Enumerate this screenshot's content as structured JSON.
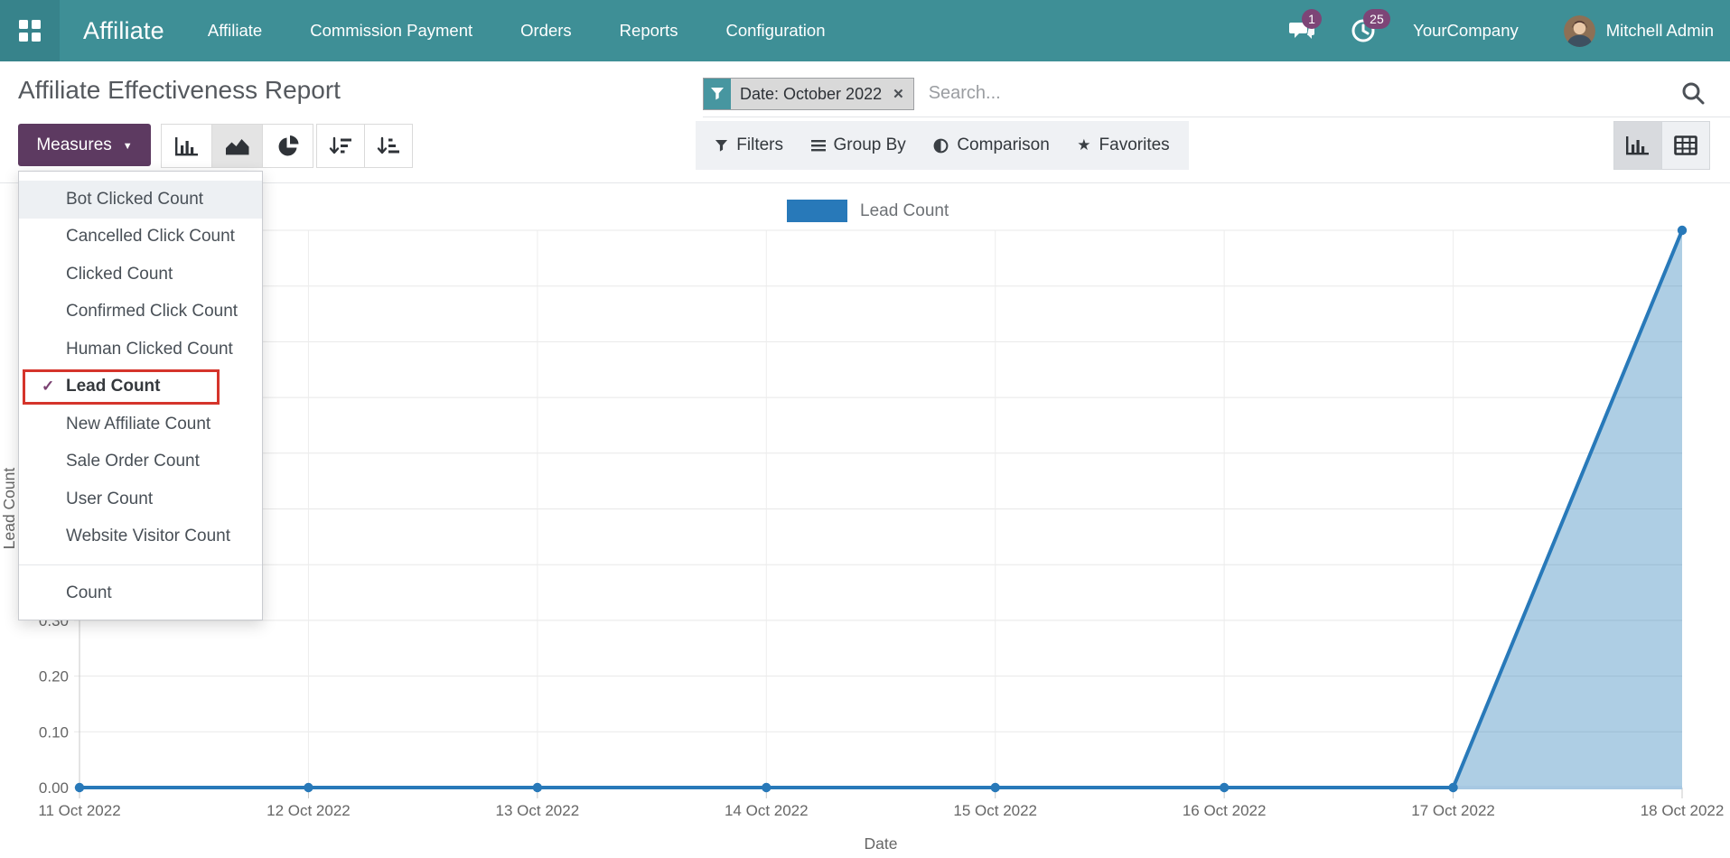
{
  "navbar": {
    "brand": "Affiliate",
    "menu_items": [
      "Affiliate",
      "Commission Payment",
      "Orders",
      "Reports",
      "Configuration"
    ],
    "messages_badge": "1",
    "activities_badge": "25",
    "company": "YourCompany",
    "user": "Mitchell Admin"
  },
  "header": {
    "title": "Affiliate Effectiveness Report",
    "filter_chip_label": "Date: October 2022",
    "search_placeholder": "Search...",
    "filter_menus": [
      "Filters",
      "Group By",
      "Comparison",
      "Favorites"
    ]
  },
  "toolbar": {
    "measures_label": "Measures"
  },
  "icons": {
    "caret": "▼",
    "close": "✕",
    "star": "★",
    "check": "✓"
  },
  "measures_dropdown": {
    "items": [
      {
        "label": "Bot Clicked Count",
        "checked": false,
        "hovered": true,
        "highlighted": false
      },
      {
        "label": "Cancelled Click Count",
        "checked": false,
        "hovered": false,
        "highlighted": false
      },
      {
        "label": "Clicked Count",
        "checked": false,
        "hovered": false,
        "highlighted": false
      },
      {
        "label": "Confirmed Click Count",
        "checked": false,
        "hovered": false,
        "highlighted": false
      },
      {
        "label": "Human Clicked Count",
        "checked": false,
        "hovered": false,
        "highlighted": false
      },
      {
        "label": "Lead Count",
        "checked": true,
        "hovered": false,
        "highlighted": true
      },
      {
        "label": "New Affiliate Count",
        "checked": false,
        "hovered": false,
        "highlighted": false
      },
      {
        "label": "Sale Order Count",
        "checked": false,
        "hovered": false,
        "highlighted": false
      },
      {
        "label": "User Count",
        "checked": false,
        "hovered": false,
        "highlighted": false
      },
      {
        "label": "Website Visitor Count",
        "checked": false,
        "hovered": false,
        "highlighted": false
      }
    ],
    "footer_item": "Count"
  },
  "chart_data": {
    "type": "area",
    "legend": [
      {
        "label": "Lead Count",
        "color": "#2879b9"
      }
    ],
    "x": [
      "11 Oct 2022",
      "12 Oct 2022",
      "13 Oct 2022",
      "14 Oct 2022",
      "15 Oct 2022",
      "16 Oct 2022",
      "17 Oct 2022",
      "18 Oct 2022"
    ],
    "series": [
      {
        "name": "Lead Count",
        "values": [
          0,
          0,
          0,
          0,
          0,
          0,
          0,
          1
        ]
      }
    ],
    "xlabel": "Date",
    "ylabel": "Lead Count",
    "ylim": [
      0,
      1
    ],
    "ytick_step": 0.1,
    "grid": true,
    "line_color": "#2879b9",
    "fill_color": "rgba(31,119,180,0.36)",
    "baseline_color": "#a7c8e2"
  },
  "colors": {
    "navbar_teal": "#3e8f96",
    "primary_button": "#5d3a61",
    "badge_purple": "#7d4577",
    "highlight_red": "#d5342b"
  }
}
